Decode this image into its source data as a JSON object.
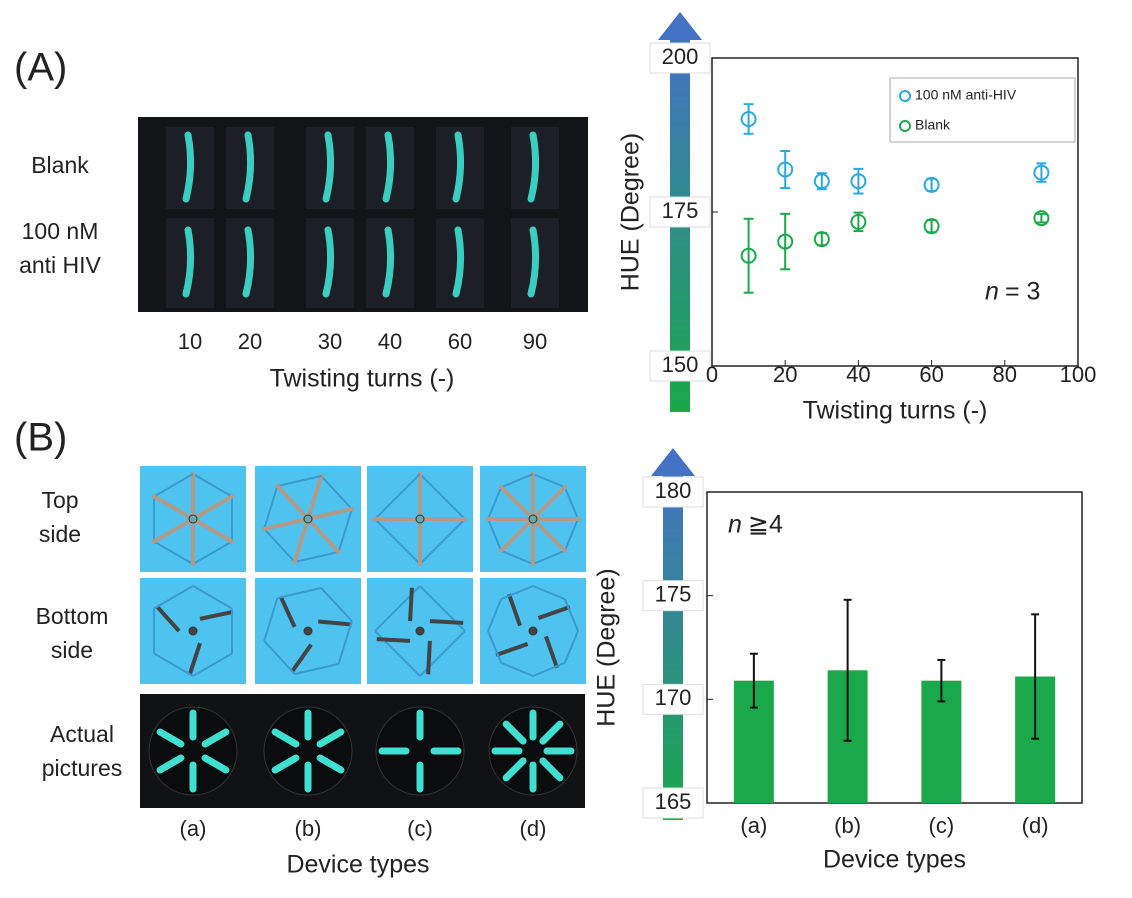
{
  "panel_a": {
    "label": "(A)",
    "row_labels": [
      [
        "Blank"
      ],
      [
        "100 nM",
        "anti HIV"
      ]
    ],
    "x_labels": [
      "10",
      "20",
      "30",
      "40",
      "60",
      "90"
    ],
    "x_title": "Twisting turns (-)"
  },
  "panel_b": {
    "label": "(B)",
    "row_labels": [
      [
        "Top",
        "side"
      ],
      [
        "Bottom",
        "side"
      ],
      [
        "Actual",
        "pictures"
      ]
    ],
    "x_labels": [
      "(a)",
      "(b)",
      "(c)",
      "(d)"
    ],
    "x_title": "Device types"
  },
  "chart_data": [
    {
      "type": "scatter",
      "xlabel": "Twisting turns (-)",
      "ylabel": "HUE (Degree)",
      "x": [
        10,
        20,
        30,
        40,
        60,
        90
      ],
      "series": [
        {
          "name": "100 nM anti-HIV",
          "color": "#29a9df",
          "values": [
            190.1,
            181.9,
            180.0,
            180.0,
            179.4,
            181.4
          ],
          "errors": [
            2.4,
            3.0,
            1.3,
            2.0,
            1.0,
            1.5
          ]
        },
        {
          "name": "Blank",
          "color": "#1aa84a",
          "values": [
            167.9,
            170.2,
            170.6,
            173.4,
            172.7,
            174.0
          ],
          "errors": [
            6.0,
            4.5,
            1.0,
            1.5,
            1.0,
            0.7
          ]
        }
      ],
      "xlim": [
        0,
        100
      ],
      "xticks": [
        0,
        20,
        40,
        60,
        80,
        100
      ],
      "ylim": [
        150,
        200
      ],
      "yticks": [
        150,
        175,
        200
      ],
      "annotation": {
        "italic": "n",
        "text": "= 3"
      }
    },
    {
      "type": "bar",
      "xlabel": "Device types",
      "ylabel": "HUE (Degree)",
      "categories": [
        "(a)",
        "(b)",
        "(c)",
        "(d)"
      ],
      "values": [
        170.9,
        171.4,
        170.9,
        171.1
      ],
      "errors": [
        1.3,
        3.4,
        1.0,
        3.0
      ],
      "color": "#1aa84a",
      "ylim": [
        165,
        180
      ],
      "yticks": [
        165,
        170,
        175,
        180
      ],
      "annotation": {
        "italic": "n",
        "text": "≧4"
      }
    }
  ]
}
